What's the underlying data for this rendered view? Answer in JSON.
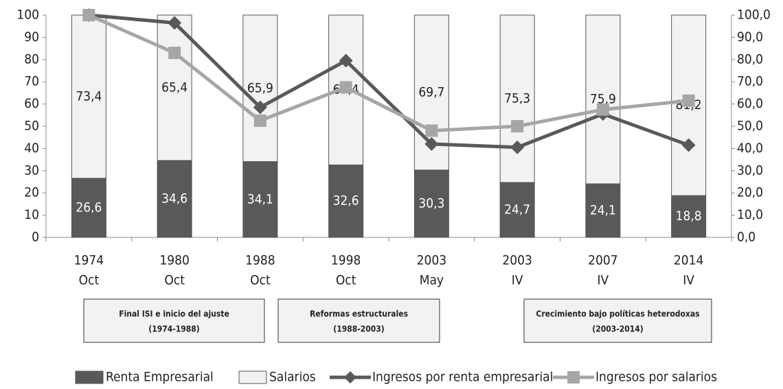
{
  "chart_data": {
    "type": "bar",
    "categories": [
      [
        "1974",
        "Oct"
      ],
      [
        "1980",
        "Oct"
      ],
      [
        "1988",
        "Oct"
      ],
      [
        "1998",
        "Oct"
      ],
      [
        "2003",
        "May"
      ],
      [
        "2003",
        "IV"
      ],
      [
        "2007",
        "IV"
      ],
      [
        "2014",
        "IV"
      ]
    ],
    "series": [
      {
        "name": "Renta Empresarial",
        "type": "bar",
        "color": "#595959",
        "values": [
          26.6,
          34.6,
          34.1,
          32.6,
          30.3,
          24.7,
          24.1,
          18.8
        ],
        "value_labels": [
          "26,6",
          "34,6",
          "34,1",
          "32,6",
          "30,3",
          "24,7",
          "24,1",
          "18,8"
        ]
      },
      {
        "name": "Salarios",
        "type": "bar",
        "color": "#f2f2f2",
        "values": [
          73.4,
          65.4,
          65.9,
          67.4,
          69.7,
          75.3,
          75.9,
          81.2
        ],
        "value_labels": [
          "73,4",
          "65,4",
          "65,9",
          "67,4",
          "69,7",
          "75,3",
          "75,9",
          "81,2"
        ]
      },
      {
        "name": "Ingresos por renta empresarial",
        "type": "line",
        "axis": "y2",
        "marker": "diamond",
        "color": "#595959",
        "values": [
          100,
          96.5,
          58.5,
          79.5,
          42,
          40.5,
          55.5,
          41.5
        ]
      },
      {
        "name": "Ingresos por salarios",
        "type": "line",
        "axis": "y2",
        "marker": "square",
        "color": "#a6a6a6",
        "values": [
          100,
          83,
          52.5,
          67.5,
          48,
          50,
          57.5,
          61.5
        ]
      }
    ],
    "ylim": [
      0,
      100
    ],
    "yticks": [
      0,
      10,
      20,
      30,
      40,
      50,
      60,
      70,
      80,
      90,
      100
    ],
    "y2lim": [
      0,
      100
    ],
    "y2ticks": [
      {
        "value": 0,
        "label": "0,0"
      },
      {
        "value": 10,
        "label": "10,0"
      },
      {
        "value": 20,
        "label": "20,0"
      },
      {
        "value": 30,
        "label": "30,0"
      },
      {
        "value": 40,
        "label": "40,0"
      },
      {
        "value": 50,
        "label": "50,0"
      },
      {
        "value": 60,
        "label": "60,0"
      },
      {
        "value": 70,
        "label": "70,0"
      },
      {
        "value": 80,
        "label": "80,0"
      },
      {
        "value": 90,
        "label": "90,0"
      },
      {
        "value": 100,
        "label": "100,0"
      }
    ],
    "periods": [
      {
        "label": "Final ISI e inicio del ajuste",
        "range": "(1974-1988)"
      },
      {
        "label": "Reformas estructurales",
        "range": "(1988-2003)"
      },
      {
        "label": "Crecimiento bajo políticas heterodoxas",
        "range": "(2003-2014)"
      }
    ]
  }
}
